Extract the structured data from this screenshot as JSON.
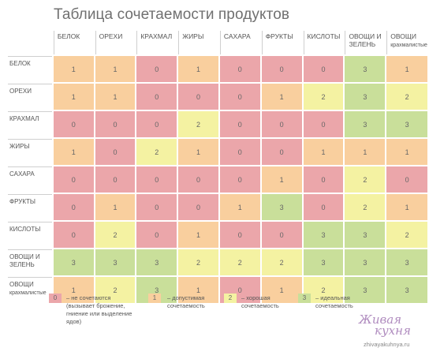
{
  "title": "Таблица сочетаемости продуктов",
  "columns": [
    {
      "label": "БЕЛОК",
      "sub": ""
    },
    {
      "label": "ОРЕХИ",
      "sub": ""
    },
    {
      "label": "КРАХМАЛ",
      "sub": ""
    },
    {
      "label": "ЖИРЫ",
      "sub": ""
    },
    {
      "label": "САХАРА",
      "sub": ""
    },
    {
      "label": "ФРУКТЫ",
      "sub": ""
    },
    {
      "label": "КИСЛОТЫ",
      "sub": ""
    },
    {
      "label": "ОВОЩИ И ЗЕЛЕНЬ",
      "sub": ""
    },
    {
      "label": "ОВОЩИ",
      "sub": "крахмалистые"
    }
  ],
  "rows": [
    {
      "label": "БЕЛОК",
      "sub": "",
      "values": [
        1,
        1,
        0,
        1,
        0,
        0,
        0,
        3,
        1
      ]
    },
    {
      "label": "ОРЕХИ",
      "sub": "",
      "values": [
        1,
        1,
        0,
        0,
        0,
        1,
        2,
        3,
        2
      ]
    },
    {
      "label": "КРАХМАЛ",
      "sub": "",
      "values": [
        0,
        0,
        0,
        2,
        0,
        0,
        0,
        3,
        3
      ]
    },
    {
      "label": "ЖИРЫ",
      "sub": "",
      "values": [
        1,
        0,
        2,
        1,
        0,
        0,
        1,
        1,
        1
      ]
    },
    {
      "label": "САХАРА",
      "sub": "",
      "values": [
        0,
        0,
        0,
        0,
        0,
        1,
        0,
        2,
        0
      ]
    },
    {
      "label": "ФРУКТЫ",
      "sub": "",
      "values": [
        0,
        1,
        0,
        0,
        1,
        3,
        0,
        2,
        1
      ]
    },
    {
      "label": "КИСЛОТЫ",
      "sub": "",
      "values": [
        0,
        2,
        0,
        1,
        0,
        0,
        3,
        3,
        2
      ]
    },
    {
      "label": "ОВОЩИ И ЗЕЛЕНЬ",
      "sub": "",
      "values": [
        3,
        3,
        3,
        2,
        2,
        2,
        3,
        3,
        3
      ]
    },
    {
      "label": "ОВОЩИ",
      "sub": "крахмалистые",
      "values": [
        1,
        2,
        3,
        1,
        0,
        1,
        2,
        3,
        3
      ]
    }
  ],
  "legend": [
    {
      "value": "0",
      "lines": [
        "– не сочетаются",
        "(вызывает брожение,",
        "гниение или выделение",
        "ядов)"
      ]
    },
    {
      "value": "1",
      "lines": [
        "– допустимая",
        "сочетаемость"
      ]
    },
    {
      "value": "2",
      "lines": [
        "– хорошая",
        "сочетаемость"
      ]
    },
    {
      "value": "3",
      "lines": [
        "– идеальная",
        "сочетаемость"
      ]
    }
  ],
  "colors": {
    "0": "#eba6aa",
    "1": "#f9cf9e",
    "2": "#f4f2a2",
    "3": "#c9df9a"
  },
  "brand": {
    "logo_line1": "Живая",
    "logo_line2": "кухня",
    "site": "zhivayakuhnya.ru"
  }
}
